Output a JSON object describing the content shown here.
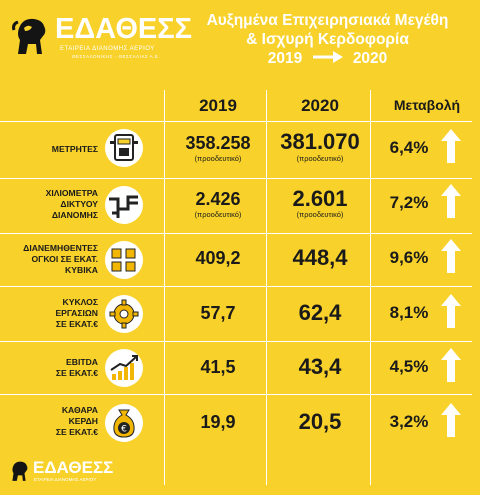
{
  "logo": {
    "name": "ΕΔΑΘΕΣΣ",
    "sub1": "ΕΤΑΙΡΕΙΑ ΔΙΑΝΟΜΗΣ ΑΕΡΙΟΥ",
    "sub2": "ΘΕΣΣΑΛΟΝΙΚΗΣ - ΘΕΣΣΑΛΙΑΣ Α.Ε."
  },
  "title": {
    "line1": "Αυξημένα Επιχειρησιακά Μεγέθη",
    "line2": "& Ισχυρή Κερδοφορία",
    "year_from": "2019",
    "year_to": "2020"
  },
  "headers": {
    "y2019": "2019",
    "y2020": "2020",
    "change": "Μεταβολή"
  },
  "colors": {
    "background": "#f8d12a",
    "text": "#1a1a1a",
    "lines": "#ffffff",
    "title": "#ffffff"
  },
  "rows": [
    {
      "label": [
        "ΜΕΤΡΗΤΕΣ"
      ],
      "v2019": "358.258",
      "sub2019": "(προοδευτικό)",
      "v2020": "381.070",
      "sub2020": "(προοδευτικό)",
      "change": "6,4%",
      "icon": "gas-meter-icon"
    },
    {
      "label": [
        "ΧΙΛΙΟΜΕΤΡΑ",
        "ΔΙΚΤΥΟΥ",
        "ΔΙΑΝΟΜΗΣ"
      ],
      "v2019": "2.426",
      "sub2019": "(προοδευτικό)",
      "v2020": "2.601",
      "sub2020": "(προοδευτικό)",
      "change": "7,2%",
      "icon": "pipe-network-icon"
    },
    {
      "label": [
        "ΔΙΑΝΕΜΗΘΕΝΤΕΣ",
        "ΟΓΚΟΙ ΣΕ ΕΚΑΤ.",
        "ΚΥΒΙΚΑ"
      ],
      "v2019": "409,2",
      "sub2019": "",
      "v2020": "448,4",
      "sub2020": "",
      "change": "9,6%",
      "icon": "cubes-icon"
    },
    {
      "label": [
        "ΚΥΚΛΟΣ",
        "ΕΡΓΑΣΙΩΝ",
        "ΣΕ ΕΚΑΤ.€"
      ],
      "v2019": "57,7",
      "sub2019": "",
      "v2020": "62,4",
      "sub2020": "",
      "change": "8,1%",
      "icon": "gear-euro-icon"
    },
    {
      "label": [
        "EBITDA",
        "ΣΕ ΕΚΑΤ.€"
      ],
      "v2019": "41,5",
      "sub2019": "",
      "v2020": "43,4",
      "sub2020": "",
      "change": "4,5%",
      "icon": "growth-chart-icon"
    },
    {
      "label": [
        "ΚΑΘΑΡΑ",
        "ΚΕΡΔΗ",
        "ΣΕ ΕΚΑΤ.€"
      ],
      "v2019": "19,9",
      "sub2019": "",
      "v2020": "20,5",
      "sub2020": "",
      "change": "3,2%",
      "icon": "money-bag-icon"
    }
  ]
}
